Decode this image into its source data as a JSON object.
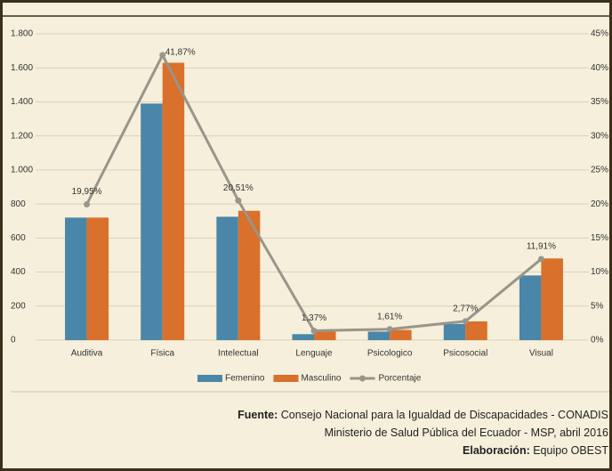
{
  "chart_data": {
    "type": "bar",
    "categories": [
      "Auditiva",
      "Física",
      "Intelectual",
      "Lenguaje",
      "Psicologico",
      "Psicosocial",
      "Visual"
    ],
    "series": [
      {
        "name": "Femenino",
        "color": "#4a86a8",
        "values": [
          720,
          1390,
          725,
          35,
          50,
          95,
          380
        ]
      },
      {
        "name": "Masculino",
        "color": "#d9702b",
        "values": [
          720,
          1630,
          760,
          50,
          60,
          110,
          480
        ]
      },
      {
        "name": "Porcentaje",
        "type": "line",
        "axis": "y2",
        "color": "#9a958a",
        "values": [
          19.95,
          41.87,
          20.51,
          1.37,
          1.61,
          2.77,
          11.91
        ],
        "value_labels": [
          "19,95%",
          "41,87%",
          "20,51%",
          "1,37%",
          "1,61%",
          "2,77%",
          "11,91%"
        ]
      }
    ],
    "ylim": [
      0,
      1800
    ],
    "yticks": [
      0,
      200,
      400,
      600,
      800,
      {
        "value": 1000,
        "label": "1.000"
      },
      {
        "value": 1200,
        "label": "1.200"
      },
      {
        "value": 1400,
        "label": "1.400"
      },
      {
        "value": 1600,
        "label": "1.600"
      },
      {
        "value": 1800,
        "label": "1.800"
      }
    ],
    "y2lim": [
      0,
      45
    ],
    "y2ticks": [
      {
        "value": 0,
        "label": "0%"
      },
      {
        "value": 5,
        "label": "5%"
      },
      {
        "value": 10,
        "label": "10%"
      },
      {
        "value": 15,
        "label": "15%"
      },
      {
        "value": 20,
        "label": "20%"
      },
      {
        "value": 25,
        "label": "25%"
      },
      {
        "value": 30,
        "label": "30%"
      },
      {
        "value": 35,
        "label": "35%"
      },
      {
        "value": 40,
        "label": "40%"
      },
      {
        "value": 45,
        "label": "45%"
      }
    ],
    "grid": true,
    "legend": "bottom"
  },
  "footer": [
    {
      "label": "Fuente:",
      "text": " Consejo Nacional para la Igualdad de Discapacidades - CONADIS"
    },
    {
      "text": "Ministerio  de Salud Pública del Ecuador - MSP, abril 2016"
    },
    {
      "label": "Elaboración:",
      "text": " Equipo OBEST"
    }
  ]
}
